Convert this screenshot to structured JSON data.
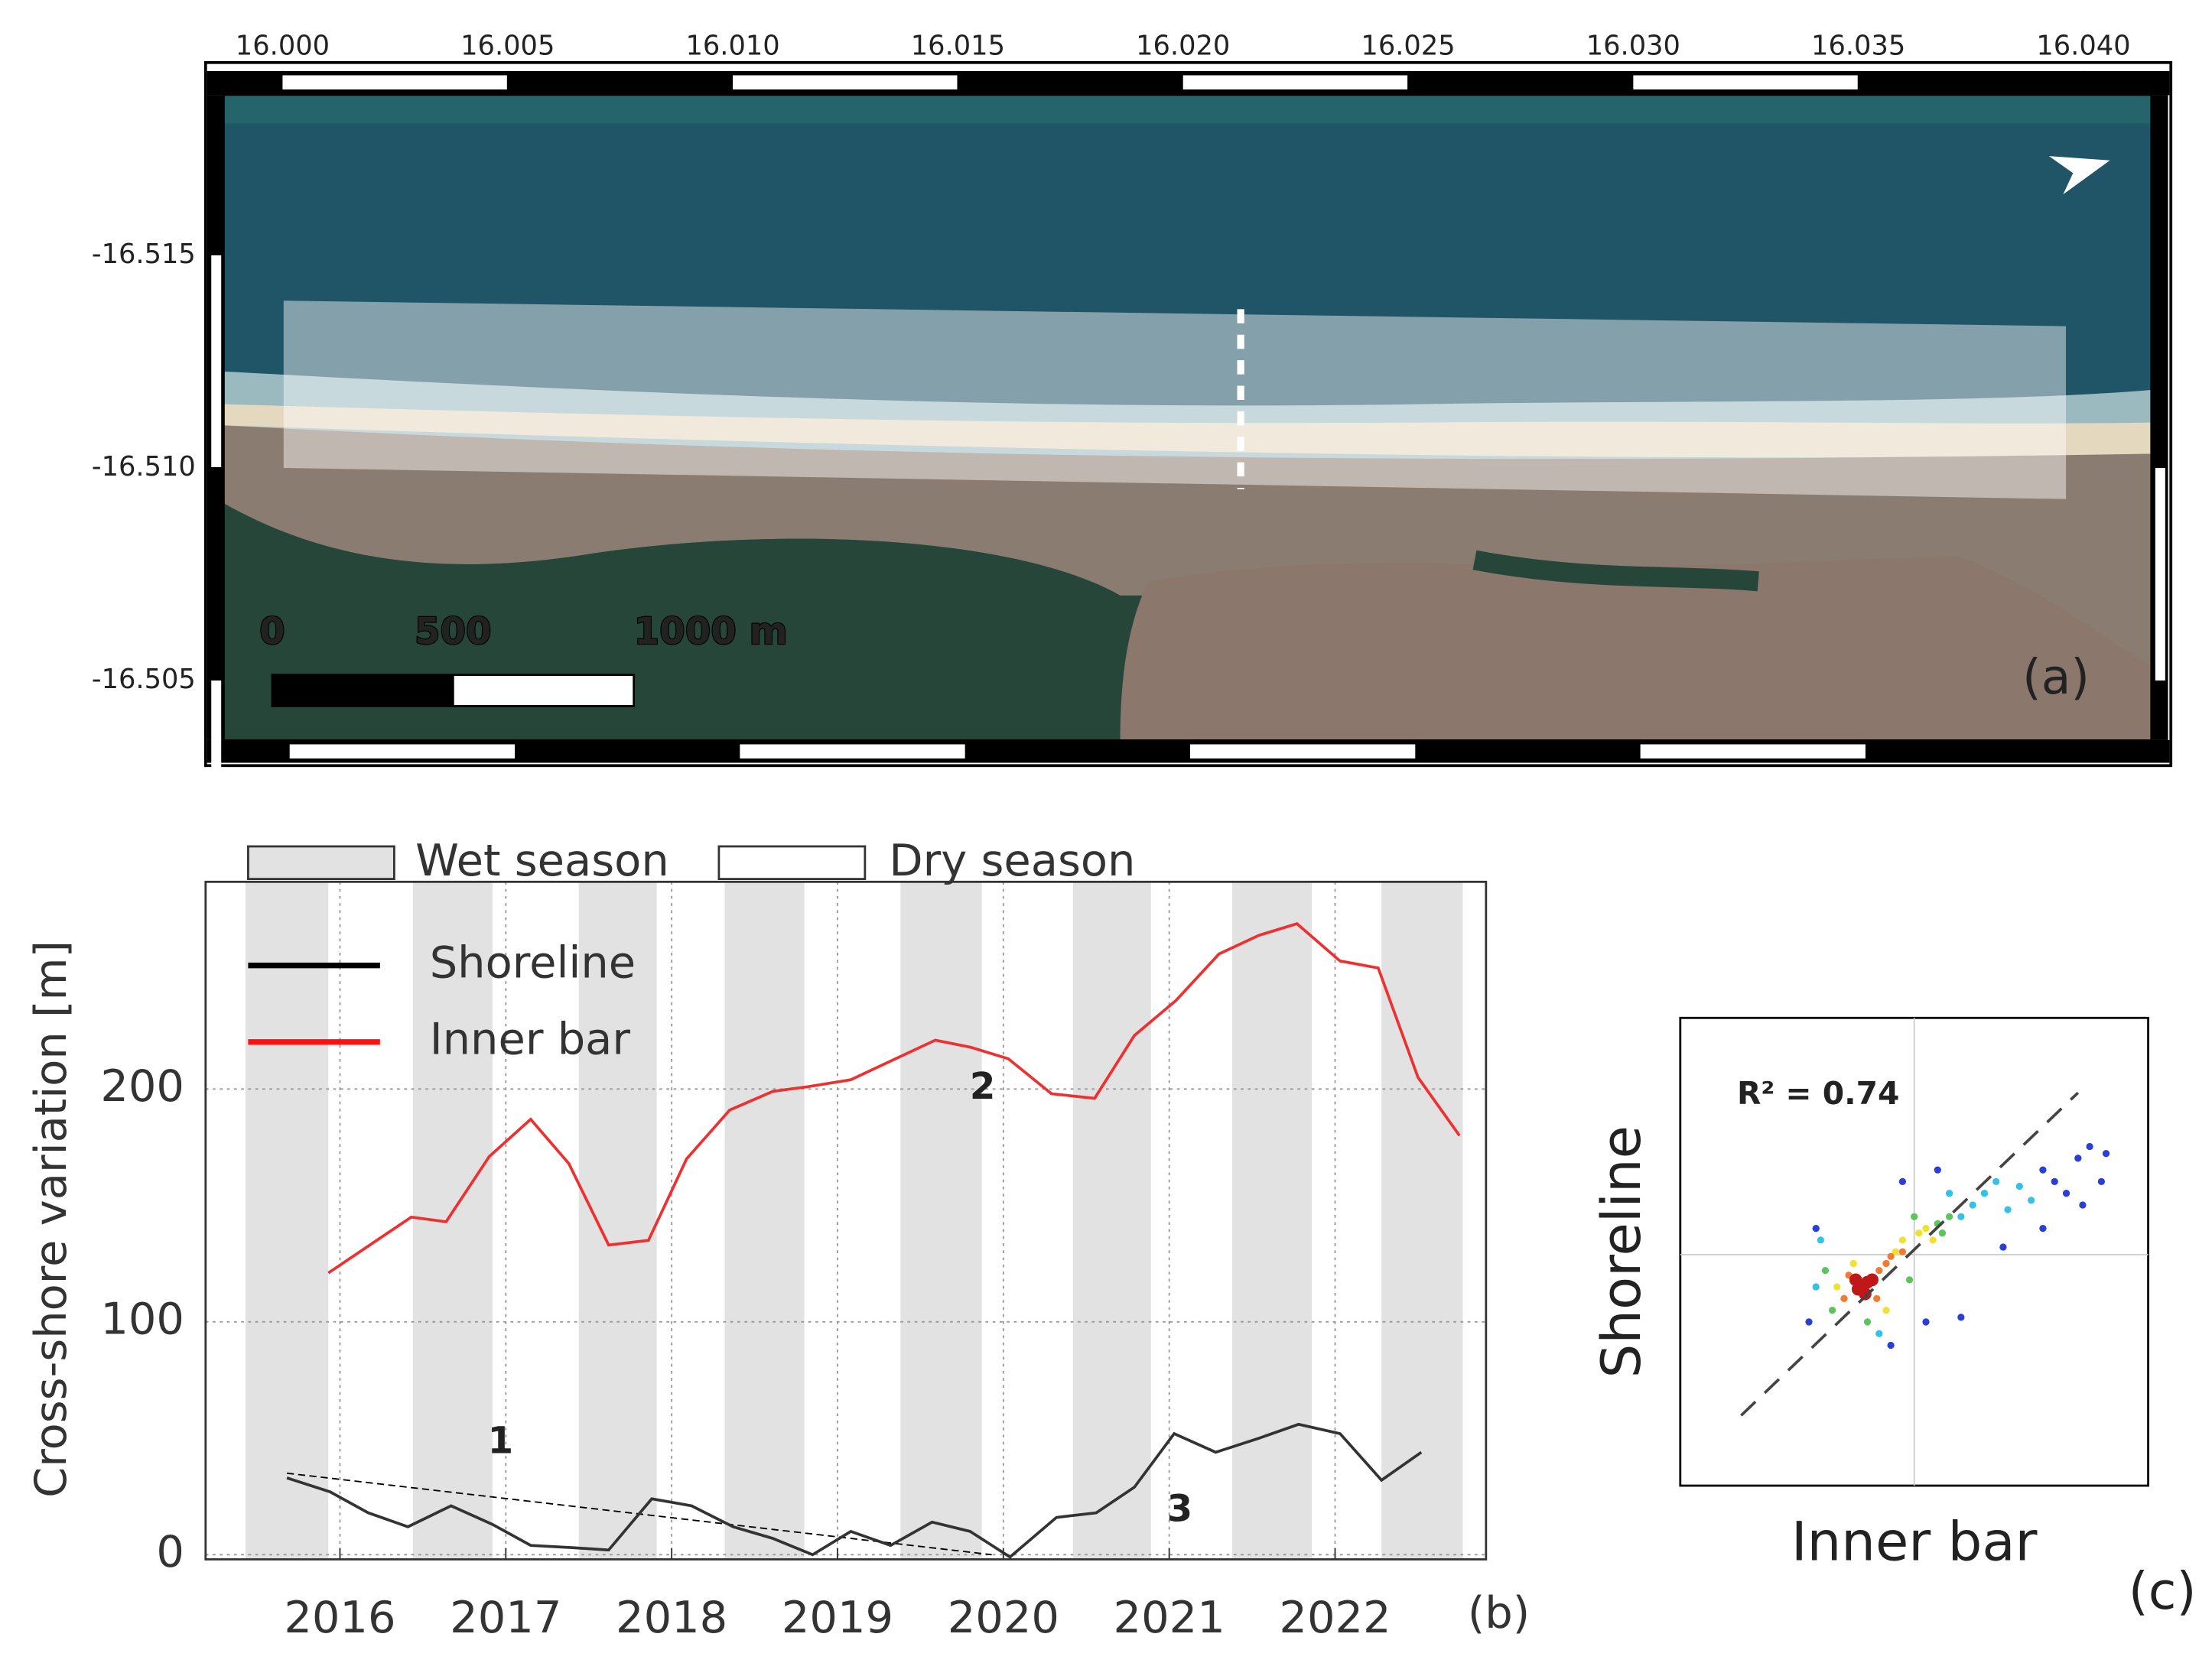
{
  "chart_data": [
    {
      "type": "map",
      "panel_label": "(a)",
      "xlim": [
        15.9987,
        16.0415
      ],
      "ylim": [
        -16.5194,
        -16.5036
      ],
      "xticks": [
        {
          "value": 16.0,
          "label": "16.000"
        },
        16.005,
        {
          "value": 16.01,
          "label": "16.010"
        },
        16.015,
        {
          "value": 16.02,
          "label": "16.020"
        },
        16.025,
        {
          "value": 16.03,
          "label": "16.030"
        },
        16.035,
        {
          "value": 16.04,
          "label": "16.040"
        }
      ],
      "yticks": [
        -16.515,
        {
          "value": -16.51,
          "label": "-16.510"
        },
        -16.505
      ],
      "scale_bar": [
        0,
        500,
        {
          "value": 1000,
          "label": "1000 m"
        }
      ]
    },
    {
      "type": "line",
      "panel_label": "(b)",
      "y_label": "Cross-shore variation [m]",
      "xlim": [
        2015.19,
        2022.91
      ],
      "ylim": [
        -2,
        289
      ],
      "xticks": [
        2016,
        2017,
        2018,
        2019,
        2020,
        2021,
        2022
      ],
      "yticks": [
        0,
        100,
        200
      ],
      "grid": true,
      "seasons": [
        {
          "name": "Wet season",
          "color": "#e2e2e2",
          "spans": [
            [
              2015.43,
              2015.93
            ],
            [
              2016.44,
              2016.92
            ],
            [
              2017.44,
              2017.91
            ],
            [
              2018.32,
              2018.8
            ],
            [
              2019.38,
              2019.87
            ],
            [
              2020.42,
              2020.89
            ],
            [
              2021.38,
              2021.86
            ],
            [
              2022.28,
              2022.77
            ]
          ]
        },
        {
          "name": "Dry season",
          "color": "#ffffff"
        }
      ],
      "series": [
        {
          "name": "Shoreline",
          "color": "#333333",
          "x": [
            2015.68,
            2015.94,
            2016.17,
            2016.41,
            2016.67,
            2016.92,
            2017.15,
            2017.41,
            2017.62,
            2017.88,
            2018.12,
            2018.37,
            2018.61,
            2018.85,
            2019.08,
            2019.32,
            2019.57,
            2019.8,
            2020.04,
            2020.32,
            2020.56,
            2020.79,
            2021.03,
            2021.28,
            2021.54,
            2021.78,
            2022.03,
            2022.28,
            2022.52
          ],
          "values": [
            33,
            27,
            18,
            12,
            21,
            13,
            4,
            3,
            2,
            24,
            21,
            12,
            7,
            0,
            10,
            4,
            14,
            10,
            -1,
            16,
            18,
            29,
            52,
            44,
            50,
            56,
            52,
            32,
            44
          ]
        },
        {
          "name": "Inner bar",
          "color": "#ee3030",
          "x": [
            2015.93,
            2016.43,
            2016.64,
            2016.9,
            2017.15,
            2017.38,
            2017.62,
            2017.86,
            2018.09,
            2018.35,
            2018.61,
            2018.82,
            2019.08,
            2019.38,
            2019.59,
            2019.8,
            2020.03,
            2020.29,
            2020.55,
            2020.79,
            2021.04,
            2021.3,
            2021.54,
            2021.77,
            2022.03,
            2022.26,
            2022.5,
            2022.75
          ],
          "values": [
            121,
            145,
            143,
            171,
            187,
            168,
            133,
            135,
            170,
            191,
            199,
            201,
            204,
            214,
            221,
            218,
            213,
            198,
            196,
            223,
            238,
            258,
            266,
            271,
            255,
            252,
            205,
            180
          ]
        }
      ],
      "trend": {
        "x": [
          2015.68,
          2019.93
        ],
        "values": [
          35,
          0
        ]
      },
      "annotations": [
        "1",
        "2",
        "3"
      ]
    },
    {
      "type": "scatter",
      "panel_label": "(c)",
      "x_label": "Inner bar",
      "y_label": "Shoreline",
      "annotation": "R² = 0.74",
      "xlim": [
        -1,
        1
      ],
      "ylim": [
        -1,
        1
      ],
      "fit": {
        "x": [
          -0.74,
          0.7
        ],
        "values": [
          -0.7,
          0.68
        ]
      },
      "series": [
        {
          "color": "#2b3fd6",
          "x": [
            0.55,
            0.6,
            0.65,
            0.7,
            0.75,
            0.8,
            -0.45,
            -0.42,
            -0.1,
            0.05,
            0.2,
            0.38,
            0.72,
            0.1,
            -0.05,
            0.82,
            0.55
          ],
          "values": [
            0.35,
            0.3,
            0.25,
            0.4,
            0.45,
            0.3,
            -0.3,
            0.1,
            -0.4,
            -0.3,
            -0.28,
            0.02,
            0.2,
            0.35,
            0.3,
            0.42,
            0.1
          ]
        },
        {
          "color": "#35c0e6",
          "x": [
            0.25,
            0.3,
            0.35,
            0.2,
            -0.42,
            -0.4,
            -0.15,
            0.4,
            0.45,
            0.5,
            0.15
          ],
          "values": [
            0.2,
            0.25,
            0.3,
            0.15,
            -0.15,
            0.05,
            -0.35,
            0.18,
            0.28,
            0.22,
            0.25
          ]
        },
        {
          "color": "#5cc45c",
          "x": [
            0.1,
            0.12,
            -0.38,
            -0.35,
            -0.2,
            0.15,
            -0.02,
            0.0
          ],
          "values": [
            0.12,
            0.08,
            -0.08,
            -0.25,
            -0.3,
            0.15,
            -0.12,
            0.15
          ]
        },
        {
          "color": "#f2e030",
          "x": [
            -0.05,
            0.02,
            -0.08,
            0.05,
            -0.33,
            -0.12,
            0.08,
            -0.26
          ],
          "values": [
            0.05,
            0.08,
            0.0,
            0.1,
            -0.15,
            -0.25,
            0.05,
            -0.05
          ]
        },
        {
          "color": "#f47a30",
          "x": [
            -0.15,
            -0.12,
            -0.1,
            -0.05,
            -0.28,
            -0.3,
            -0.16
          ],
          "values": [
            -0.08,
            -0.05,
            -0.02,
            0.0,
            -0.1,
            -0.2,
            -0.2
          ]
        },
        {
          "color": "#c01818",
          "x": [
            -0.22,
            -0.2,
            -0.24,
            -0.18,
            -0.21,
            -0.25
          ],
          "values": [
            -0.15,
            -0.13,
            -0.16,
            -0.12,
            -0.18,
            -0.12
          ]
        }
      ]
    }
  ]
}
